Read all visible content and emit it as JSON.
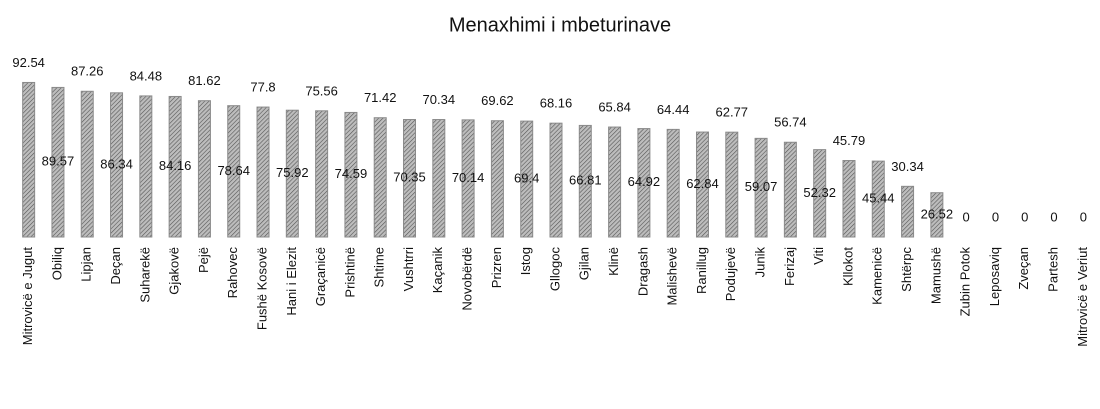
{
  "chart_data": {
    "type": "bar",
    "title": "Menaxhimi i mbeturinave",
    "categories": [
      "Mitrovicë e Jugut",
      "Obiliq",
      "Lipjan",
      "Deçan",
      "Suharekë",
      "Gjakovë",
      "Pejë",
      "Rahovec",
      "Fushë Kosovë",
      "Hani i Elezit",
      "Graçanicë",
      "Prishtinë",
      "Shtime",
      "Vushtrri",
      "Kaçanik",
      "Novobërdë",
      "Prizren",
      "Istog",
      "Gllogoc",
      "Gjilan",
      "Klinë",
      "Dragash",
      "Malishevë",
      "Ranillug",
      "Podujevë",
      "Junik",
      "Ferizaj",
      "Viti",
      "Kllokot",
      "Kamenicë",
      "Shtërpc",
      "Mamushë",
      "Zubin Potok",
      "Leposaviq",
      "Zveçan",
      "Partesh",
      "Mitrovicë e Veriut"
    ],
    "values": [
      92.54,
      89.57,
      87.26,
      86.34,
      84.48,
      84.16,
      81.62,
      78.64,
      77.8,
      75.92,
      75.56,
      74.59,
      71.42,
      70.35,
      70.34,
      70.14,
      69.62,
      69.4,
      68.16,
      66.81,
      65.84,
      64.92,
      64.44,
      62.84,
      62.77,
      59.07,
      56.74,
      52.32,
      45.79,
      45.44,
      30.34,
      26.52,
      0,
      0,
      0,
      0,
      0
    ],
    "color": "#8a8a8a",
    "ylim": [
      0,
      100
    ]
  }
}
